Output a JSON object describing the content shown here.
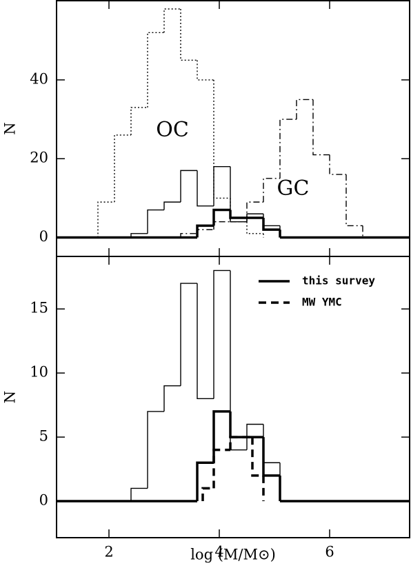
{
  "chart_data": [
    {
      "type": "histogram",
      "ylabel": "N",
      "xlim": [
        1.05,
        7.45
      ],
      "ylim": [
        -4.8,
        60.1
      ],
      "xticks": [
        2,
        4,
        6
      ],
      "yticks": [
        0,
        20,
        40
      ],
      "xtick_labels": false,
      "annotations": [
        {
          "text": "OC"
        },
        {
          "text": "GC"
        }
      ],
      "series": [
        {
          "color": "#000000",
          "linestyle": "dotted",
          "linewidth": 1.4,
          "bins": [
            1.8,
            2.1,
            2.4,
            2.7,
            3.0,
            3.3,
            3.6,
            3.9,
            4.2,
            4.5,
            4.8
          ],
          "values": [
            9,
            26,
            33,
            52,
            58,
            45,
            40,
            10,
            4,
            1
          ]
        },
        {
          "color": "#000000",
          "linestyle": "solid",
          "linewidth": 1.4,
          "bins": [
            2.4,
            2.7,
            3.0,
            3.3,
            3.6,
            3.9,
            4.2,
            4.5,
            4.8,
            5.1
          ],
          "values": [
            1,
            7,
            9,
            17,
            8,
            18,
            4,
            6,
            3
          ]
        },
        {
          "color": "#000000",
          "linestyle": "dash-dot",
          "linewidth": 1.4,
          "bins": [
            3.3,
            3.6,
            3.9,
            4.2,
            4.5,
            4.8,
            5.1,
            5.4,
            5.7,
            6.0,
            6.3,
            6.6
          ],
          "values": [
            1,
            2,
            4,
            4,
            9,
            15,
            30,
            35,
            21,
            16,
            3
          ]
        },
        {
          "color": "#000000",
          "linestyle": "solid",
          "linewidth": 3.5,
          "baseline": true,
          "bins": [
            3.6,
            3.9,
            4.2,
            4.5,
            4.8,
            5.1
          ],
          "values": [
            3,
            7,
            5,
            5,
            2
          ]
        }
      ]
    },
    {
      "type": "histogram",
      "ylabel": "N",
      "xlabel": "log (M/M⊙)",
      "xlim": [
        1.05,
        7.45
      ],
      "ylim": [
        -2.85,
        19.1
      ],
      "xticks": [
        2,
        4,
        6
      ],
      "yticks": [
        0,
        5,
        10,
        15
      ],
      "xtick_labels": true,
      "legend": "upper right",
      "series": [
        {
          "color": "#000000",
          "linestyle": "solid",
          "linewidth": 1.4,
          "bins": [
            2.4,
            2.7,
            3.0,
            3.3,
            3.6,
            3.9,
            4.2,
            4.5,
            4.8,
            5.1
          ],
          "values": [
            1,
            7,
            9,
            17,
            8,
            18,
            4,
            6,
            3
          ]
        },
        {
          "name": "this survey",
          "color": "#000000",
          "linestyle": "solid",
          "linewidth": 3.5,
          "baseline": true,
          "bins": [
            3.6,
            3.9,
            4.2,
            4.5,
            4.8,
            5.1
          ],
          "values": [
            3,
            7,
            5,
            5,
            2
          ]
        },
        {
          "name": "MW YMC",
          "color": "#000000",
          "linestyle": "dashed",
          "linewidth": 3.5,
          "bins": [
            3.7,
            3.9,
            4.2,
            4.6,
            4.8
          ],
          "values": [
            1,
            4,
            5,
            2
          ]
        }
      ]
    }
  ]
}
